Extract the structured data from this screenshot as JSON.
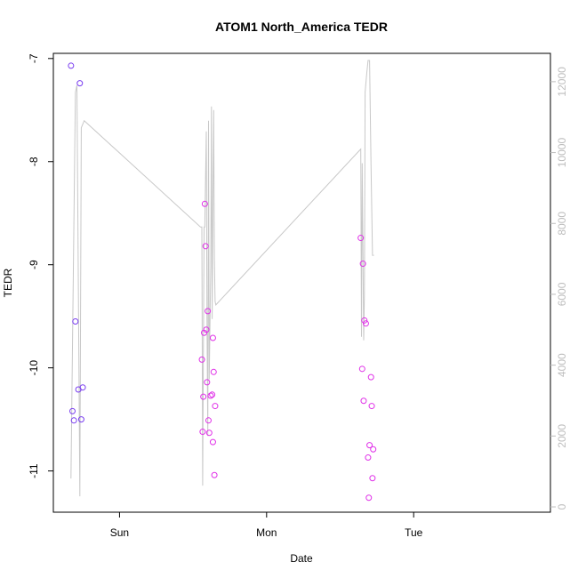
{
  "chart_data": {
    "type": "scatter",
    "title": "ATOM1 North_America TEDR",
    "xlabel": "Date",
    "ylabel": "TEDR",
    "x_ticks": [
      "Sun",
      "Mon",
      "Tue"
    ],
    "x_range_days": [
      -0.45,
      2.93
    ],
    "y_ticks": [
      -7,
      -8,
      -9,
      -10,
      -11
    ],
    "ylim": [
      -11.4,
      -6.95
    ],
    "y2_ticks": [
      0,
      2000,
      4000,
      6000,
      8000,
      10000,
      12000
    ],
    "y2lim": [
      -150,
      12800
    ],
    "grid": false,
    "colors": {
      "points_early": "#7a3df0",
      "points_late": "#e030e8",
      "line": "#c8c8c8",
      "right_axis": "#bdbdbd"
    },
    "points": [
      {
        "x": -0.33,
        "y": -7.07
      },
      {
        "x": -0.27,
        "y": -7.24
      },
      {
        "x": -0.3,
        "y": -9.55
      },
      {
        "x": -0.32,
        "y": -10.42
      },
      {
        "x": -0.31,
        "y": -10.51
      },
      {
        "x": -0.28,
        "y": -10.21
      },
      {
        "x": -0.26,
        "y": -10.5
      },
      {
        "x": -0.25,
        "y": -10.19
      },
      {
        "x": 0.56,
        "y": -9.92
      },
      {
        "x": 0.57,
        "y": -10.28
      },
      {
        "x": 0.565,
        "y": -10.62
      },
      {
        "x": 0.58,
        "y": -8.41
      },
      {
        "x": 0.585,
        "y": -8.82
      },
      {
        "x": 0.575,
        "y": -9.66
      },
      {
        "x": 0.59,
        "y": -9.63
      },
      {
        "x": 0.6,
        "y": -9.45
      },
      {
        "x": 0.595,
        "y": -10.14
      },
      {
        "x": 0.605,
        "y": -10.51
      },
      {
        "x": 0.61,
        "y": -10.63
      },
      {
        "x": 0.62,
        "y": -10.27
      },
      {
        "x": 0.63,
        "y": -10.26
      },
      {
        "x": 0.635,
        "y": -9.71
      },
      {
        "x": 0.64,
        "y": -10.04
      },
      {
        "x": 0.635,
        "y": -10.72
      },
      {
        "x": 0.65,
        "y": -10.37
      },
      {
        "x": 0.645,
        "y": -11.04
      },
      {
        "x": 1.64,
        "y": -8.74
      },
      {
        "x": 1.655,
        "y": -8.99
      },
      {
        "x": 1.65,
        "y": -10.01
      },
      {
        "x": 1.665,
        "y": -9.54
      },
      {
        "x": 1.675,
        "y": -9.57
      },
      {
        "x": 1.66,
        "y": -10.32
      },
      {
        "x": 1.69,
        "y": -10.87
      },
      {
        "x": 1.7,
        "y": -10.75
      },
      {
        "x": 1.71,
        "y": -10.09
      },
      {
        "x": 1.715,
        "y": -10.37
      },
      {
        "x": 1.725,
        "y": -10.79
      },
      {
        "x": 1.72,
        "y": -11.07
      },
      {
        "x": 1.695,
        "y": -11.26
      }
    ],
    "line_y2": {
      "x": [
        -0.33,
        -0.3,
        -0.29,
        -0.27,
        -0.26,
        -0.24,
        0.55,
        0.56,
        0.565,
        0.575,
        0.58,
        0.59,
        0.595,
        0.6,
        0.605,
        0.61,
        0.62,
        0.625,
        0.63,
        0.635,
        0.64,
        0.645,
        0.65,
        0.655,
        1.64,
        1.645,
        1.65,
        1.66,
        1.665,
        1.67,
        1.68,
        1.69,
        1.7,
        1.71,
        1.72,
        1.725,
        1.73
      ],
      "y2": [
        800,
        11700,
        11900,
        300,
        10700,
        10900,
        7900,
        7900,
        600,
        7900,
        7900,
        10600,
        5100,
        2000,
        10900,
        3600,
        6800,
        11300,
        5300,
        8600,
        11200,
        7000,
        5800,
        5700,
        10100,
        4800,
        9700,
        4700,
        6000,
        11700,
        12200,
        12600,
        12600,
        9700,
        7100,
        7100,
        7100
      ]
    }
  }
}
